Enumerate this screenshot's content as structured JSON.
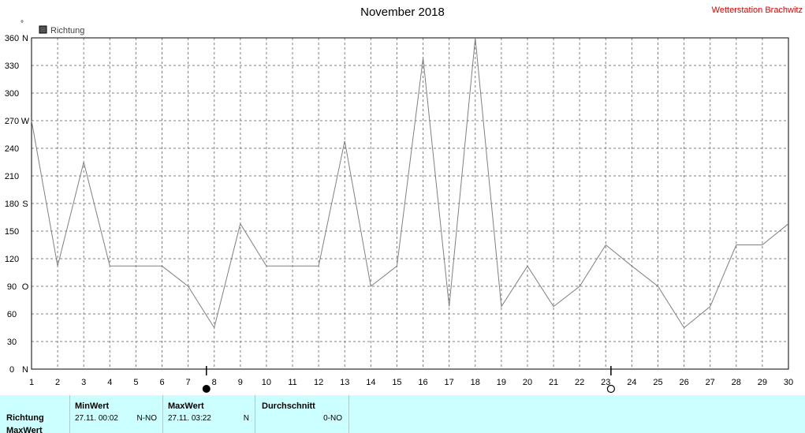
{
  "header": {
    "title": "November 2018",
    "station": "Wetterstation Brachwitz"
  },
  "chart_data": {
    "type": "line",
    "title": "November 2018",
    "unit_label": "°",
    "legend": "Richtung",
    "ylim": [
      0,
      360
    ],
    "yticks": [
      {
        "value": 0,
        "label": "0",
        "dir": "N"
      },
      {
        "value": 30,
        "label": "30",
        "dir": ""
      },
      {
        "value": 60,
        "label": "60",
        "dir": ""
      },
      {
        "value": 90,
        "label": "90",
        "dir": "O"
      },
      {
        "value": 120,
        "label": "120",
        "dir": ""
      },
      {
        "value": 150,
        "label": "150",
        "dir": ""
      },
      {
        "value": 180,
        "label": "180",
        "dir": "S"
      },
      {
        "value": 210,
        "label": "210",
        "dir": ""
      },
      {
        "value": 240,
        "label": "240",
        "dir": ""
      },
      {
        "value": 270,
        "label": "270",
        "dir": "W"
      },
      {
        "value": 300,
        "label": "300",
        "dir": ""
      },
      {
        "value": 330,
        "label": "330",
        "dir": ""
      },
      {
        "value": 360,
        "label": "360",
        "dir": "N"
      }
    ],
    "x": [
      1,
      2,
      3,
      4,
      5,
      6,
      7,
      8,
      9,
      10,
      11,
      12,
      13,
      14,
      15,
      16,
      17,
      18,
      19,
      20,
      21,
      22,
      23,
      24,
      25,
      26,
      27,
      28,
      29,
      30
    ],
    "series": [
      {
        "name": "Richtung",
        "values": [
          270,
          112,
          225,
          112,
          112,
          112,
          90,
          45,
          158,
          112,
          112,
          112,
          248,
          90,
          112,
          338,
          68,
          360,
          68,
          112,
          68,
          90,
          135,
          112,
          90,
          45,
          68,
          135,
          135,
          158
        ]
      }
    ],
    "moon_phases": [
      {
        "day": 7.7,
        "phase": "new"
      },
      {
        "day": 23.2,
        "phase": "full"
      }
    ],
    "grid": true
  },
  "table": {
    "headers": {
      "min": "MinWert",
      "max": "MaxWert",
      "avg": "Durchschnitt"
    },
    "rows": [
      {
        "label": "Richtung",
        "min_time": "27.11.  00:02",
        "min_dir": "N-NO",
        "max_time": "27.11.  03:22",
        "max_dir": "N",
        "avg": "0-NO"
      },
      {
        "label": "MaxWert"
      }
    ]
  },
  "colors": {
    "line": "#808080",
    "grid": "#808080",
    "table_bg": "#ccffff",
    "station": "#e00000"
  }
}
